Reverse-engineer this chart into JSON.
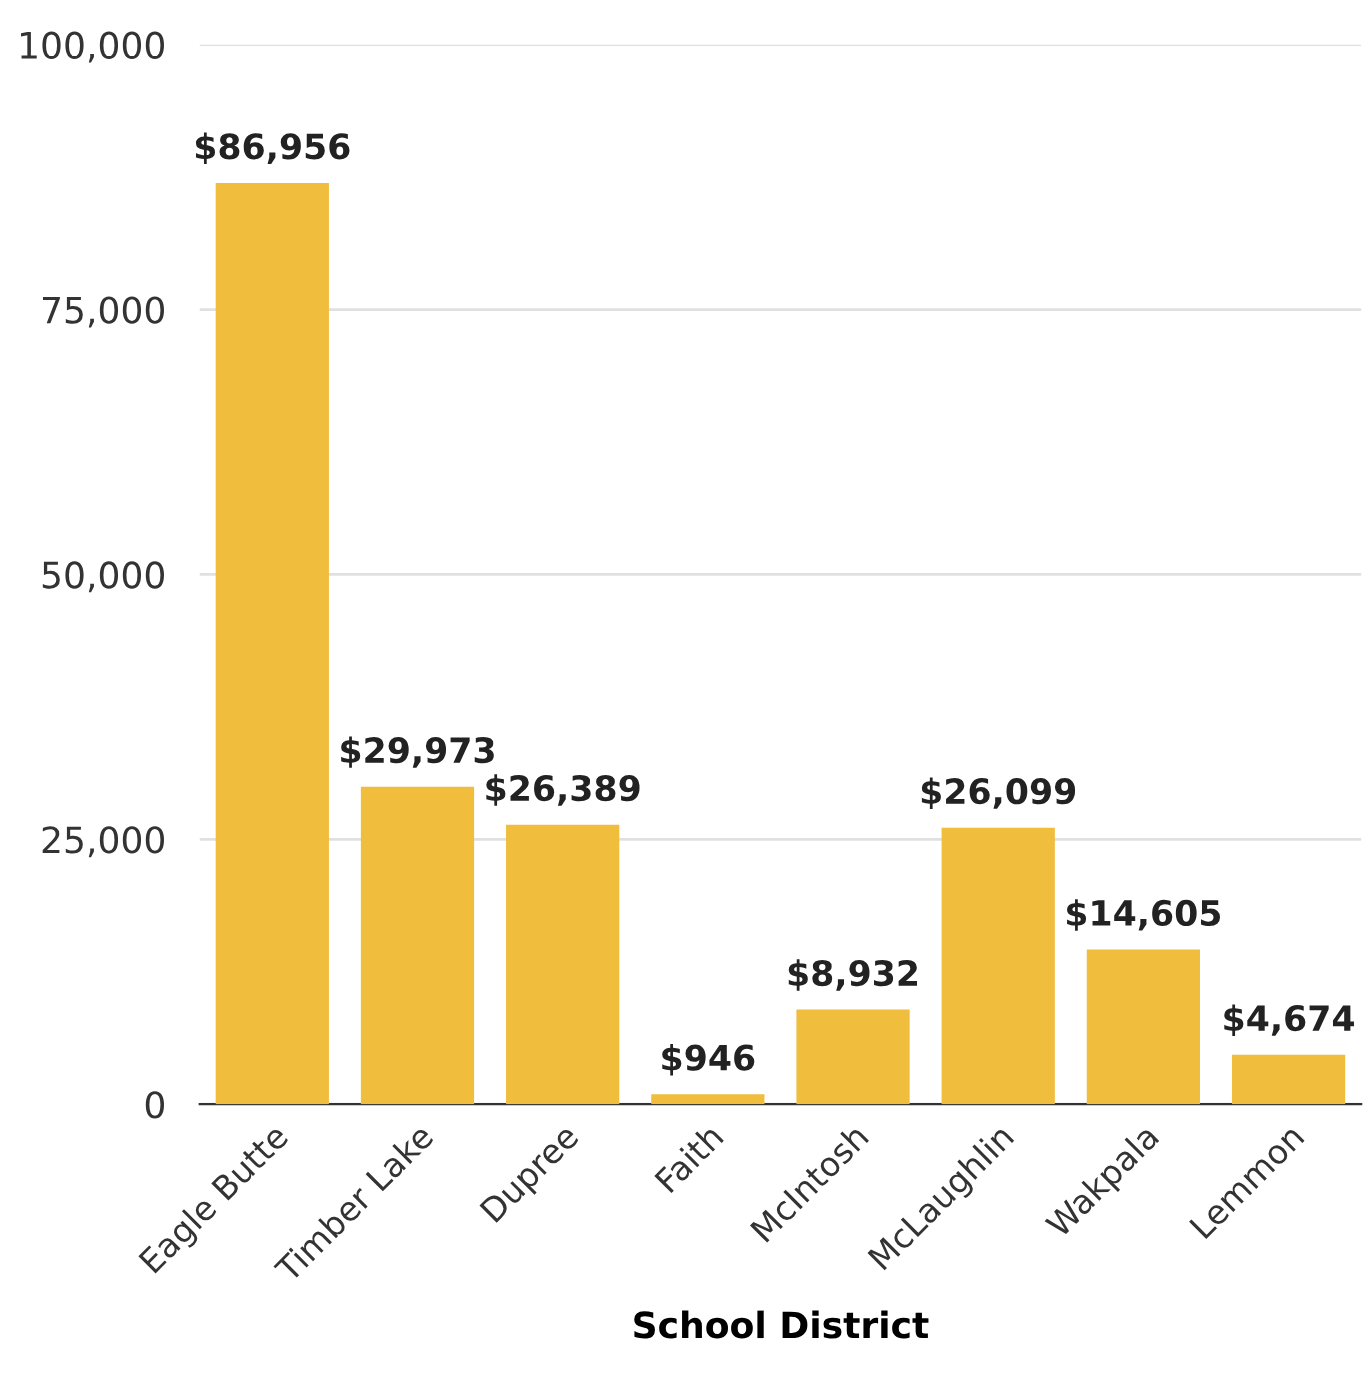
{
  "chart_data": {
    "type": "bar",
    "xlabel": "School District",
    "categories": [
      "Eagle Butte",
      "Timber Lake",
      "Dupree",
      "Faith",
      "McIntosh",
      "McLaughlin",
      "Wakpala",
      "Lemmon"
    ],
    "values": [
      86956,
      29973,
      26389,
      946,
      8932,
      26099,
      14605,
      4674
    ],
    "value_labels": [
      "$86,956",
      "$29,973",
      "$26,389",
      "$946",
      "$8,932",
      "$26,099",
      "$14,605",
      "$4,674"
    ],
    "color": "#f0bd3c",
    "ylim": [
      0,
      100000
    ],
    "yticks": [
      {
        "value": 0,
        "label": "0"
      },
      {
        "value": 25000,
        "label": "25,000"
      },
      {
        "value": 50000,
        "label": "50,000"
      },
      {
        "value": 75000,
        "label": "75,000"
      },
      {
        "value": 100000,
        "label": "100,000"
      }
    ],
    "grid": "y"
  }
}
